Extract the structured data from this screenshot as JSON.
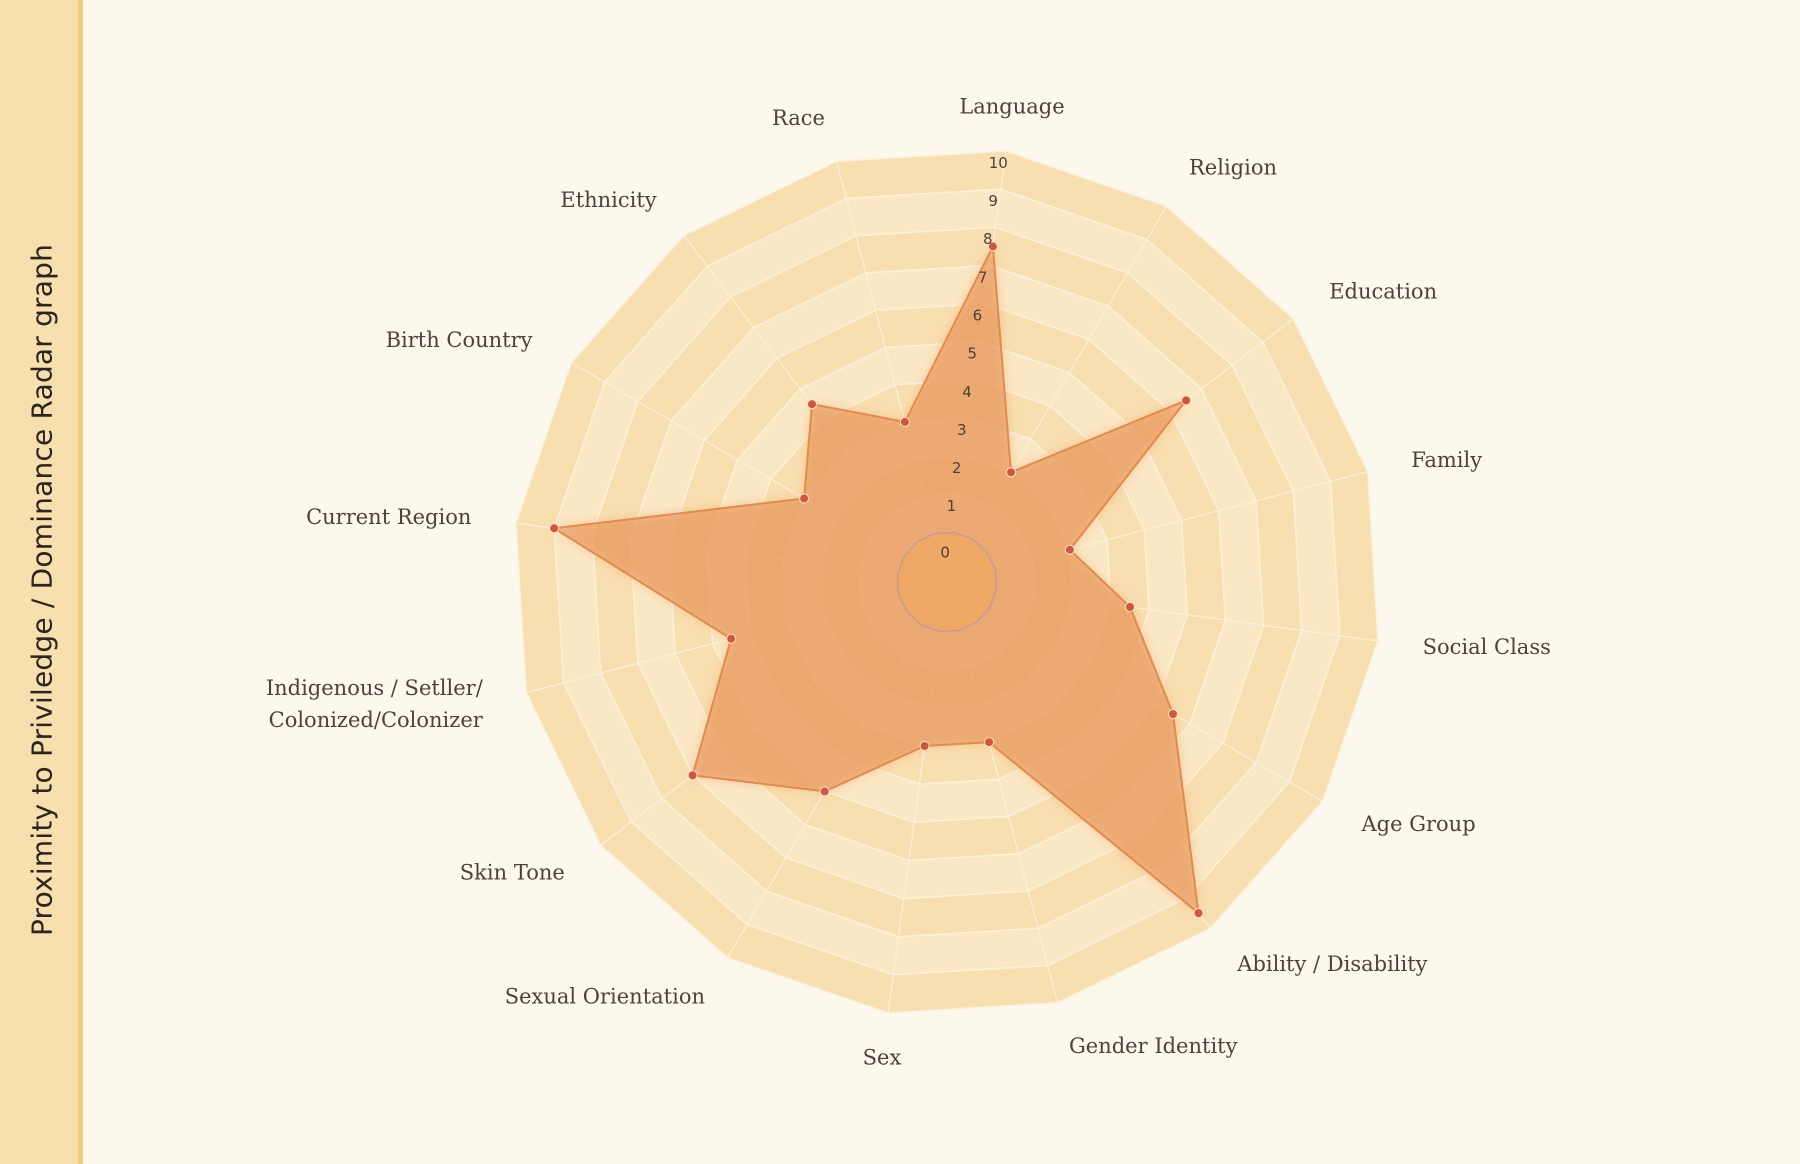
{
  "sidebar": {
    "title": "Proximity to Priviledge / Dominance Radar graph"
  },
  "colors": {
    "background": "#fdf8ee",
    "sidebar": "#f7dfae",
    "sidebar_edge": "#f5c97e",
    "band_dark": "#f8dfb0",
    "band_light": "#fae8c5",
    "area_fill": "#e8975a",
    "area_stroke": "#e38a4c",
    "point": "#d2553d",
    "center": "#efa964"
  },
  "chart_data": {
    "type": "radar",
    "title": "",
    "categories": [
      "Language",
      "Religion",
      "Education",
      "Family",
      "Social Class",
      "Age Group",
      "Ability / Disability",
      "Gender Identity",
      "Sex",
      "Sexual Orientation",
      "Skin Tone",
      "Indigenous / Setller/ Colonized/Colonizer",
      "Current Region",
      "Birth Country",
      "Ethnicity",
      "Race"
    ],
    "category_lines": [
      [
        "Language"
      ],
      [
        "Religion"
      ],
      [
        "Education"
      ],
      [
        "Family"
      ],
      [
        "Social Class"
      ],
      [
        "Age Group"
      ],
      [
        "Ability / Disability"
      ],
      [
        "Gender Identity"
      ],
      [
        "Sex"
      ],
      [
        "Sexual Orientation"
      ],
      [
        "Skin Tone"
      ],
      [
        "Indigenous / Setller/",
        "Colonized/Colonizer"
      ],
      [
        "Current Region"
      ],
      [
        "Birth Country"
      ],
      [
        "Ethnicity"
      ],
      [
        "Race"
      ]
    ],
    "values": [
      7.5,
      2,
      6.5,
      2,
      3.5,
      5.5,
      9.5,
      3,
      3,
      5,
      7,
      4.5,
      9,
      3,
      4.5,
      3
    ],
    "ticks": [
      "0",
      "1",
      "2",
      "3",
      "4",
      "5",
      "6",
      "7",
      "8",
      "9",
      "10"
    ],
    "rlim": [
      0,
      10
    ],
    "grid": true,
    "legend": "none"
  }
}
